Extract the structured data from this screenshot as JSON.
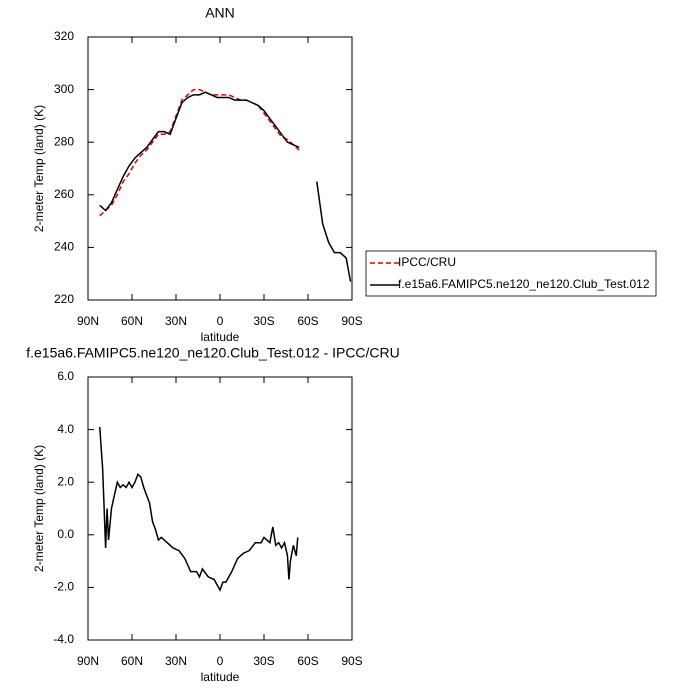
{
  "chart_data": [
    {
      "type": "line",
      "title": "ANN",
      "xlabel": "latitude",
      "ylabel": "2-meter Temp (land) (K)",
      "x": [
        82,
        78,
        74,
        70,
        66,
        62,
        58,
        54,
        50,
        46,
        42,
        38,
        34,
        30,
        26,
        22,
        18,
        14,
        10,
        6,
        2,
        -2,
        -6,
        -10,
        -14,
        -18,
        -22,
        -26,
        -30,
        -34,
        -38,
        -42,
        -46,
        -50,
        -54,
        -58,
        -62,
        -66,
        -70,
        -74,
        -78,
        -82,
        -86,
        -89
      ],
      "xlim": [
        90,
        -90
      ],
      "xticks": [
        {
          "value": 90,
          "label": "90N"
        },
        {
          "value": 60,
          "label": "60N"
        },
        {
          "value": 30,
          "label": "30N"
        },
        0,
        {
          "value": -30,
          "label": "30S"
        },
        {
          "value": -60,
          "label": "60S"
        },
        {
          "value": -90,
          "label": "90S"
        }
      ],
      "ylim": [
        220,
        320
      ],
      "yticks": [
        220,
        240,
        260,
        280,
        300,
        320
      ],
      "legend": "right",
      "series": [
        {
          "name": "IPCC/CRU",
          "color": "#e00000",
          "dash": true,
          "values": [
            252,
            254,
            256,
            260,
            265,
            268,
            272,
            275,
            277,
            280,
            283,
            283,
            284,
            290,
            296,
            298,
            300,
            300,
            299,
            298,
            298,
            298,
            298,
            297,
            296,
            296,
            295,
            294,
            291,
            288,
            285,
            282,
            281,
            279,
            277,
            null,
            null,
            null,
            null,
            null,
            null,
            null,
            null,
            null
          ]
        },
        {
          "name": "f.e15a6.FAMIPC5.ne120_ne120.Club_Test.012",
          "color": "#000000",
          "dash": false,
          "values": [
            256,
            254,
            257,
            262,
            267,
            271,
            274,
            276,
            278,
            281,
            284,
            284,
            283,
            289,
            295,
            297,
            298,
            298,
            299,
            298,
            297,
            297,
            297,
            296,
            296,
            296,
            295,
            294,
            292,
            289,
            286,
            283,
            280,
            279,
            278,
            null,
            null,
            265,
            249,
            242,
            238,
            238,
            236,
            227
          ]
        }
      ]
    },
    {
      "type": "line",
      "title": "f.e15a6.FAMIPC5.ne120_ne120.Club_Test.012 - IPCC/CRU",
      "xlabel": "latitude",
      "ylabel": "2-meter Temp (land) (K)",
      "x": [
        82,
        80,
        78,
        77,
        76,
        74,
        72,
        70,
        68,
        66,
        64,
        62,
        60,
        58,
        56,
        54,
        52,
        50,
        48,
        46,
        44,
        42,
        40,
        36,
        32,
        28,
        24,
        20,
        16,
        14,
        12,
        8,
        4,
        0,
        -2,
        -4,
        -8,
        -12,
        -16,
        -20,
        -24,
        -28,
        -30,
        -34,
        -36,
        -38,
        -40,
        -42,
        -44,
        -46,
        -47,
        -48,
        -50,
        -52,
        -53
      ],
      "xlim": [
        90,
        -90
      ],
      "xticks": [
        {
          "value": 90,
          "label": "90N"
        },
        {
          "value": 60,
          "label": "60N"
        },
        {
          "value": 30,
          "label": "30N"
        },
        0,
        {
          "value": -30,
          "label": "30S"
        },
        {
          "value": -60,
          "label": "60S"
        },
        {
          "value": -90,
          "label": "90S"
        }
      ],
      "ylim": [
        -4,
        6
      ],
      "yticks": [
        {
          "value": -4,
          "label": "-4.0"
        },
        {
          "value": -2,
          "label": "-2.0"
        },
        {
          "value": 0,
          "label": "0.0"
        },
        {
          "value": 2,
          "label": "2.0"
        },
        {
          "value": 4,
          "label": "4.0"
        },
        {
          "value": 6,
          "label": "6.0"
        }
      ],
      "series": [
        {
          "color": "#000000",
          "dash": false,
          "values": [
            4.1,
            2.5,
            -0.5,
            1.0,
            -0.2,
            1.0,
            1.5,
            2.0,
            1.8,
            1.9,
            1.8,
            2.0,
            1.8,
            2.0,
            2.3,
            2.2,
            1.8,
            1.5,
            1.2,
            0.5,
            0.2,
            -0.2,
            -0.1,
            -0.3,
            -0.5,
            -0.6,
            -0.9,
            -1.4,
            -1.4,
            -1.6,
            -1.3,
            -1.6,
            -1.7,
            -2.1,
            -1.8,
            -1.8,
            -1.4,
            -0.9,
            -0.7,
            -0.6,
            -0.3,
            -0.3,
            -0.1,
            -0.3,
            0.3,
            -0.4,
            -0.3,
            -0.5,
            -0.3,
            -0.8,
            -1.7,
            -1.0,
            -0.4,
            -0.8,
            -0.1
          ]
        }
      ]
    }
  ]
}
